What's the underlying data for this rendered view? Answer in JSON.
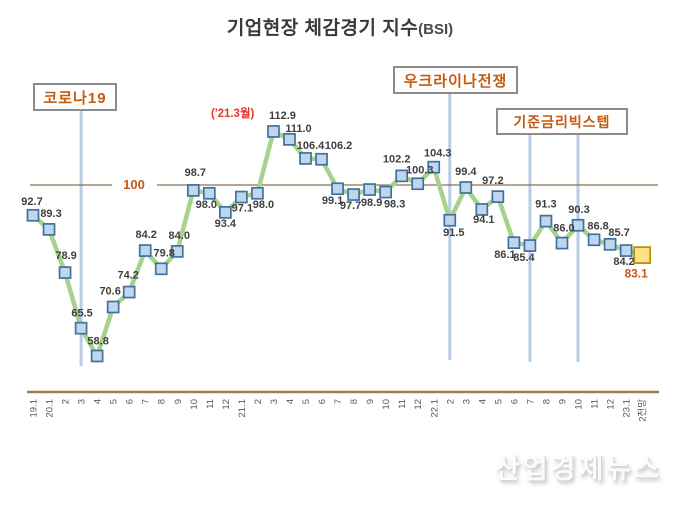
{
  "title": {
    "main": "기업현장 체감경기 지수",
    "suffix": "(BSI)"
  },
  "watermark": {
    "text": "산업경제뉴스"
  },
  "chart_data": {
    "type": "line",
    "title": "기업현장 체감경기 지수(BSI)",
    "categories": [
      "19.1",
      "20.1",
      "2",
      "3",
      "4",
      "5",
      "6",
      "7",
      "8",
      "9",
      "10",
      "11",
      "12",
      "21.1",
      "2",
      "3",
      "4",
      "5",
      "6",
      "7",
      "8",
      "9",
      "10",
      "11",
      "12",
      "22.1",
      "2",
      "3",
      "4",
      "5",
      "6",
      "7",
      "8",
      "9",
      "10",
      "11",
      "12",
      "23.1",
      "2전망"
    ],
    "values": [
      92.7,
      89.3,
      78.9,
      65.5,
      58.8,
      70.6,
      74.2,
      84.2,
      79.8,
      84.0,
      98.7,
      98.0,
      93.4,
      97.1,
      98.0,
      112.9,
      111.0,
      106.4,
      106.2,
      99.1,
      97.7,
      98.9,
      98.3,
      102.2,
      100.3,
      104.3,
      91.5,
      99.4,
      94.1,
      97.2,
      86.1,
      85.4,
      91.3,
      86.0,
      90.3,
      86.8,
      85.7,
      84.2,
      83.1
    ],
    "reference_line": {
      "value": 100,
      "label": "100"
    },
    "peak_annotation": {
      "label": "('21.3월)",
      "value": 112.9
    },
    "event_annotations": [
      {
        "label": "코로나19",
        "at_category_index": 3
      },
      {
        "label": "우크라이나전쟁",
        "at_category_index": 26
      },
      {
        "label": "기준금리빅스텝",
        "at_category_indices": [
          31,
          34
        ]
      }
    ],
    "forecast_point": {
      "category": "2전망",
      "value": 83.1
    },
    "legend": "none",
    "grid": "off"
  },
  "colors": {
    "series_line": "#a9d18e",
    "marker_fill": "#bdd7ee",
    "marker_border": "#41719c",
    "forecast_fill": "#ffe18a",
    "forecast_border": "#bf9000",
    "accent_orange": "#c55a11",
    "peak_red": "#e8362d",
    "event_line": "#b8cce4",
    "axis_line": "#a97c50",
    "reference_line": "#8c7156",
    "data_label": "#3f3f3f",
    "tick_label": "#595959"
  }
}
